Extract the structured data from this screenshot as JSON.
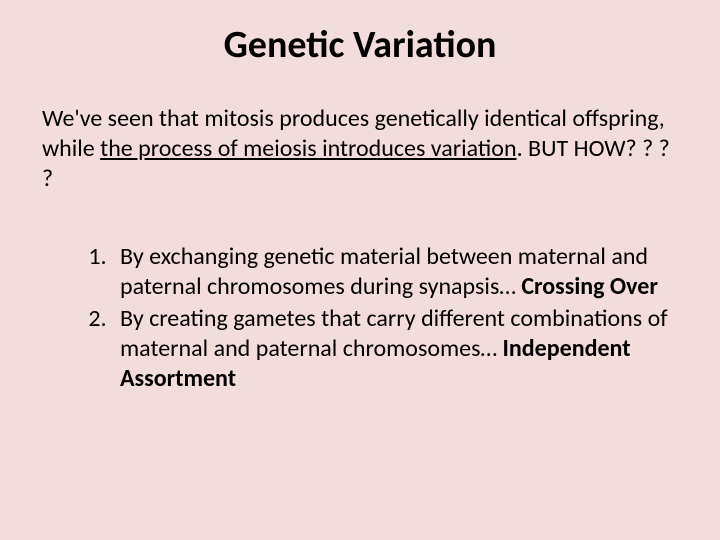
{
  "slide": {
    "background_color": "#f2dcdc",
    "text_color": "#000000",
    "font_family": "Calibri",
    "title": {
      "text": "Genetic Variation",
      "fontsize": 38,
      "weight": "bold",
      "align": "center"
    },
    "intro": {
      "pre": "We've seen that mitosis produces genetically identical offspring, while ",
      "underlined": "the process of meiosis introduces variation",
      "post": ". BUT HOW? ? ? ?",
      "fontsize": 24
    },
    "list": {
      "type": "ordered",
      "fontsize": 24,
      "items": [
        {
          "text": "By exchanging genetic material between maternal and paternal chromosomes during synapsis… ",
          "bold_suffix": "Crossing Over"
        },
        {
          "text": "By creating gametes that carry different combinations of maternal and paternal chromosomes… ",
          "bold_suffix": "Independent Assortment"
        }
      ]
    }
  }
}
